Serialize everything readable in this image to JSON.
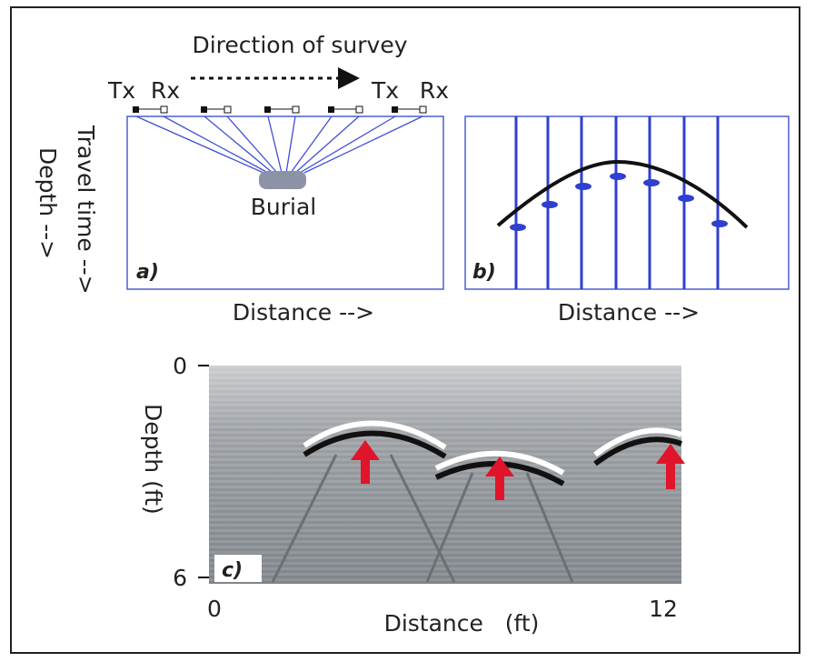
{
  "panel_a": {
    "survey_label": "Direction of survey",
    "tx_left": "Tx",
    "rx_left": "Rx",
    "tx_right": "Tx",
    "rx_right": "Rx",
    "target": "Burial",
    "y_axis_label_1": "Travel time -->",
    "y_axis_label_2": "Depth -->",
    "x_axis_label": "Distance -->",
    "panel_label": "a)"
  },
  "panel_b": {
    "x_axis_label": "Distance -->",
    "panel_label": "b)"
  },
  "panel_c": {
    "y_axis_label": "Depth (ft)",
    "x_axis_label": "Distance   (ft)",
    "panel_label": "c)",
    "y_tick_top": "0",
    "y_tick_bottom": "6",
    "x_tick_left": "0",
    "x_tick_right": "12"
  }
}
